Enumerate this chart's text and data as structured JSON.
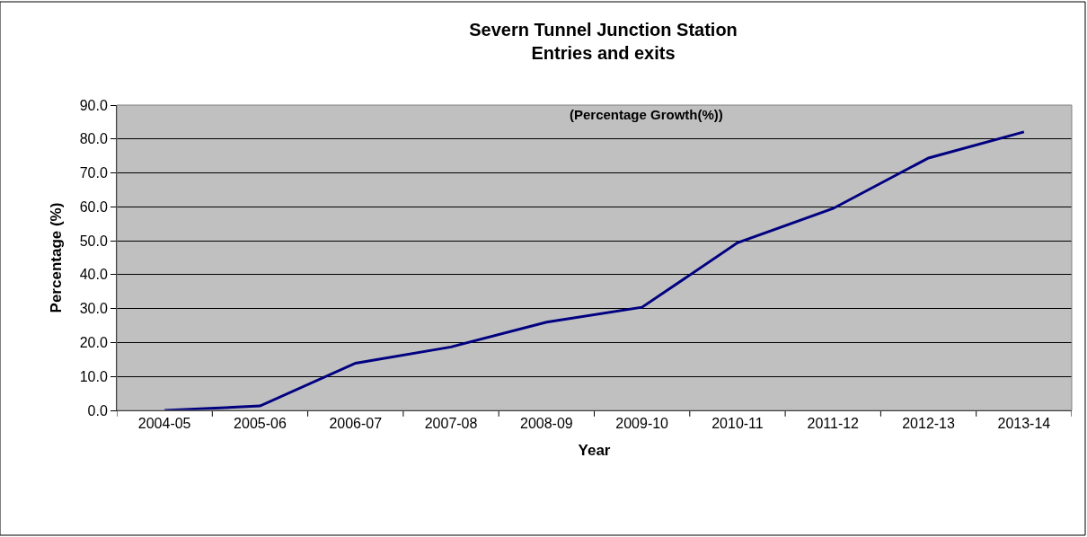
{
  "chart_data": {
    "type": "line",
    "title": "Severn Tunnel Junction Station\nEntries and exits",
    "subtitle": "(Percentage Growth(%))",
    "xlabel": "Year",
    "ylabel": "Percentage (%)",
    "categories": [
      "2004-05",
      "2005-06",
      "2006-07",
      "2007-08",
      "2008-09",
      "2009-10",
      "2010-11",
      "2011-12",
      "2012-13",
      "2013-14"
    ],
    "series": [
      {
        "color": "#000080",
        "values": [
          0.0,
          1.3,
          13.9,
          18.7,
          26.0,
          30.4,
          49.4,
          59.5,
          74.4,
          82.1
        ]
      }
    ],
    "ylim": [
      0,
      90
    ],
    "yticks": [
      {
        "value": 0,
        "label": "0.0"
      },
      {
        "value": 10,
        "label": "10.0"
      },
      {
        "value": 20,
        "label": "20.0"
      },
      {
        "value": 30,
        "label": "30.0"
      },
      {
        "value": 40,
        "label": "40.0"
      },
      {
        "value": 50,
        "label": "50.0"
      },
      {
        "value": 60,
        "label": "60.0"
      },
      {
        "value": 70,
        "label": "70.0"
      },
      {
        "value": 80,
        "label": "80.0"
      },
      {
        "value": 90,
        "label": "90.0"
      }
    ],
    "grid": "y",
    "marker": "none",
    "line_style": "solid"
  }
}
